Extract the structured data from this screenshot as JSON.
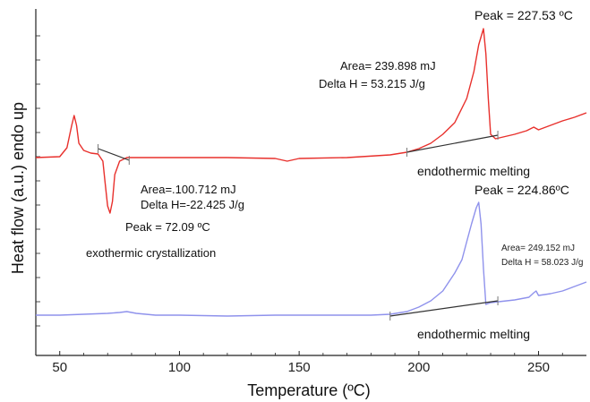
{
  "chart_data": {
    "type": "line",
    "xlabel": "Temperature (ºC)",
    "ylabel": "Heat flow (a.u.) endo up",
    "xlim": [
      40,
      270
    ],
    "x_ticks": [
      50,
      100,
      150,
      200,
      250
    ],
    "grid": false,
    "colors": {
      "series_red": "#e8302c",
      "series_blue": "#8f92ec",
      "baseline": "#333333",
      "axis": "#222222"
    },
    "series": [
      {
        "color": "#e8302c",
        "points": [
          [
            40,
            176
          ],
          [
            50,
            175
          ],
          [
            53,
            165
          ],
          [
            55,
            140
          ],
          [
            56,
            129
          ],
          [
            57,
            140
          ],
          [
            58,
            160
          ],
          [
            60,
            168
          ],
          [
            63,
            171
          ],
          [
            66,
            172
          ],
          [
            68,
            180
          ],
          [
            69,
            205
          ],
          [
            70,
            230
          ],
          [
            71,
            238
          ],
          [
            72,
            225
          ],
          [
            73,
            195
          ],
          [
            75,
            180
          ],
          [
            78,
            176
          ],
          [
            85,
            176
          ],
          [
            100,
            176
          ],
          [
            120,
            176
          ],
          [
            140,
            177
          ],
          [
            145,
            180
          ],
          [
            150,
            177
          ],
          [
            170,
            176
          ],
          [
            188,
            173
          ],
          [
            195,
            170
          ],
          [
            200,
            166
          ],
          [
            205,
            160
          ],
          [
            210,
            150
          ],
          [
            215,
            137
          ],
          [
            220,
            110
          ],
          [
            223,
            80
          ],
          [
            225,
            50
          ],
          [
            227,
            32
          ],
          [
            228,
            60
          ],
          [
            229,
            110
          ],
          [
            230,
            150
          ],
          [
            232,
            155
          ],
          [
            240,
            150
          ],
          [
            245,
            146
          ],
          [
            248,
            142
          ],
          [
            250,
            145
          ],
          [
            255,
            140
          ],
          [
            260,
            135
          ],
          [
            265,
            131
          ],
          [
            270,
            126
          ]
        ]
      },
      {
        "color": "#8f92ec",
        "points": [
          [
            40,
            352
          ],
          [
            50,
            352
          ],
          [
            60,
            351
          ],
          [
            70,
            350
          ],
          [
            75,
            349
          ],
          [
            78,
            348
          ],
          [
            82,
            350
          ],
          [
            90,
            352
          ],
          [
            100,
            352
          ],
          [
            120,
            353
          ],
          [
            140,
            352
          ],
          [
            160,
            352
          ],
          [
            180,
            352
          ],
          [
            188,
            351
          ],
          [
            195,
            348
          ],
          [
            200,
            343
          ],
          [
            205,
            336
          ],
          [
            210,
            325
          ],
          [
            215,
            305
          ],
          [
            218,
            290
          ],
          [
            220,
            270
          ],
          [
            222,
            250
          ],
          [
            224,
            232
          ],
          [
            225,
            226
          ],
          [
            226,
            250
          ],
          [
            227,
            300
          ],
          [
            228,
            340
          ],
          [
            230,
            338
          ],
          [
            240,
            335
          ],
          [
            246,
            332
          ],
          [
            248,
            327
          ],
          [
            249,
            325
          ],
          [
            250,
            330
          ],
          [
            255,
            328
          ],
          [
            260,
            325
          ],
          [
            265,
            320
          ],
          [
            270,
            315
          ]
        ]
      }
    ],
    "baselines": [
      {
        "from": [
          66,
          166
        ],
        "to": [
          79,
          179
        ]
      },
      {
        "from": [
          195,
          170
        ],
        "to": [
          233,
          151
        ]
      },
      {
        "from": [
          188,
          353
        ],
        "to": [
          233,
          336
        ]
      }
    ],
    "annotations": {
      "red_peak_melt": "Peak = 227.53 ºC",
      "red_area_melt": "Area= 239.898 mJ",
      "red_delta_melt": "Delta H = 53.215 J/g",
      "red_endo_label": "endothermic melting",
      "red_area_cryst": "Area=.100.712 mJ",
      "red_delta_cryst": "Delta H=-22.425 J/g",
      "red_peak_cryst": "Peak = 72.09 ºC",
      "red_exo_label": "exothermic crystallization",
      "blue_peak": "Peak = 224.86ºC",
      "blue_area": "Area= 249.152 mJ",
      "blue_delta": "Delta H = 58.023 J/g",
      "blue_endo_label": "endothermic melting"
    }
  }
}
